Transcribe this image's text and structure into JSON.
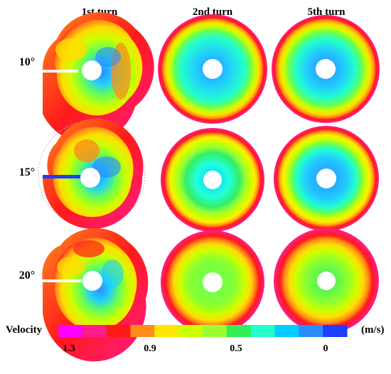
{
  "columns": [
    "1st turn",
    "2nd turn",
    "5th turn"
  ],
  "rows": [
    "10°",
    "15°",
    "20°"
  ],
  "legend": {
    "label": "Velocity",
    "unit": "(m/s)",
    "ticks": [
      "1.3",
      "0.9",
      "0.5",
      "0"
    ],
    "colors": [
      "#ff00ff",
      "#ff1c8a",
      "#ff1a1a",
      "#ff8c1a",
      "#ffe600",
      "#ccff00",
      "#99ff33",
      "#33ee55",
      "#22ffcc",
      "#00ccff",
      "#2a8cff",
      "#1f3cff"
    ]
  }
}
